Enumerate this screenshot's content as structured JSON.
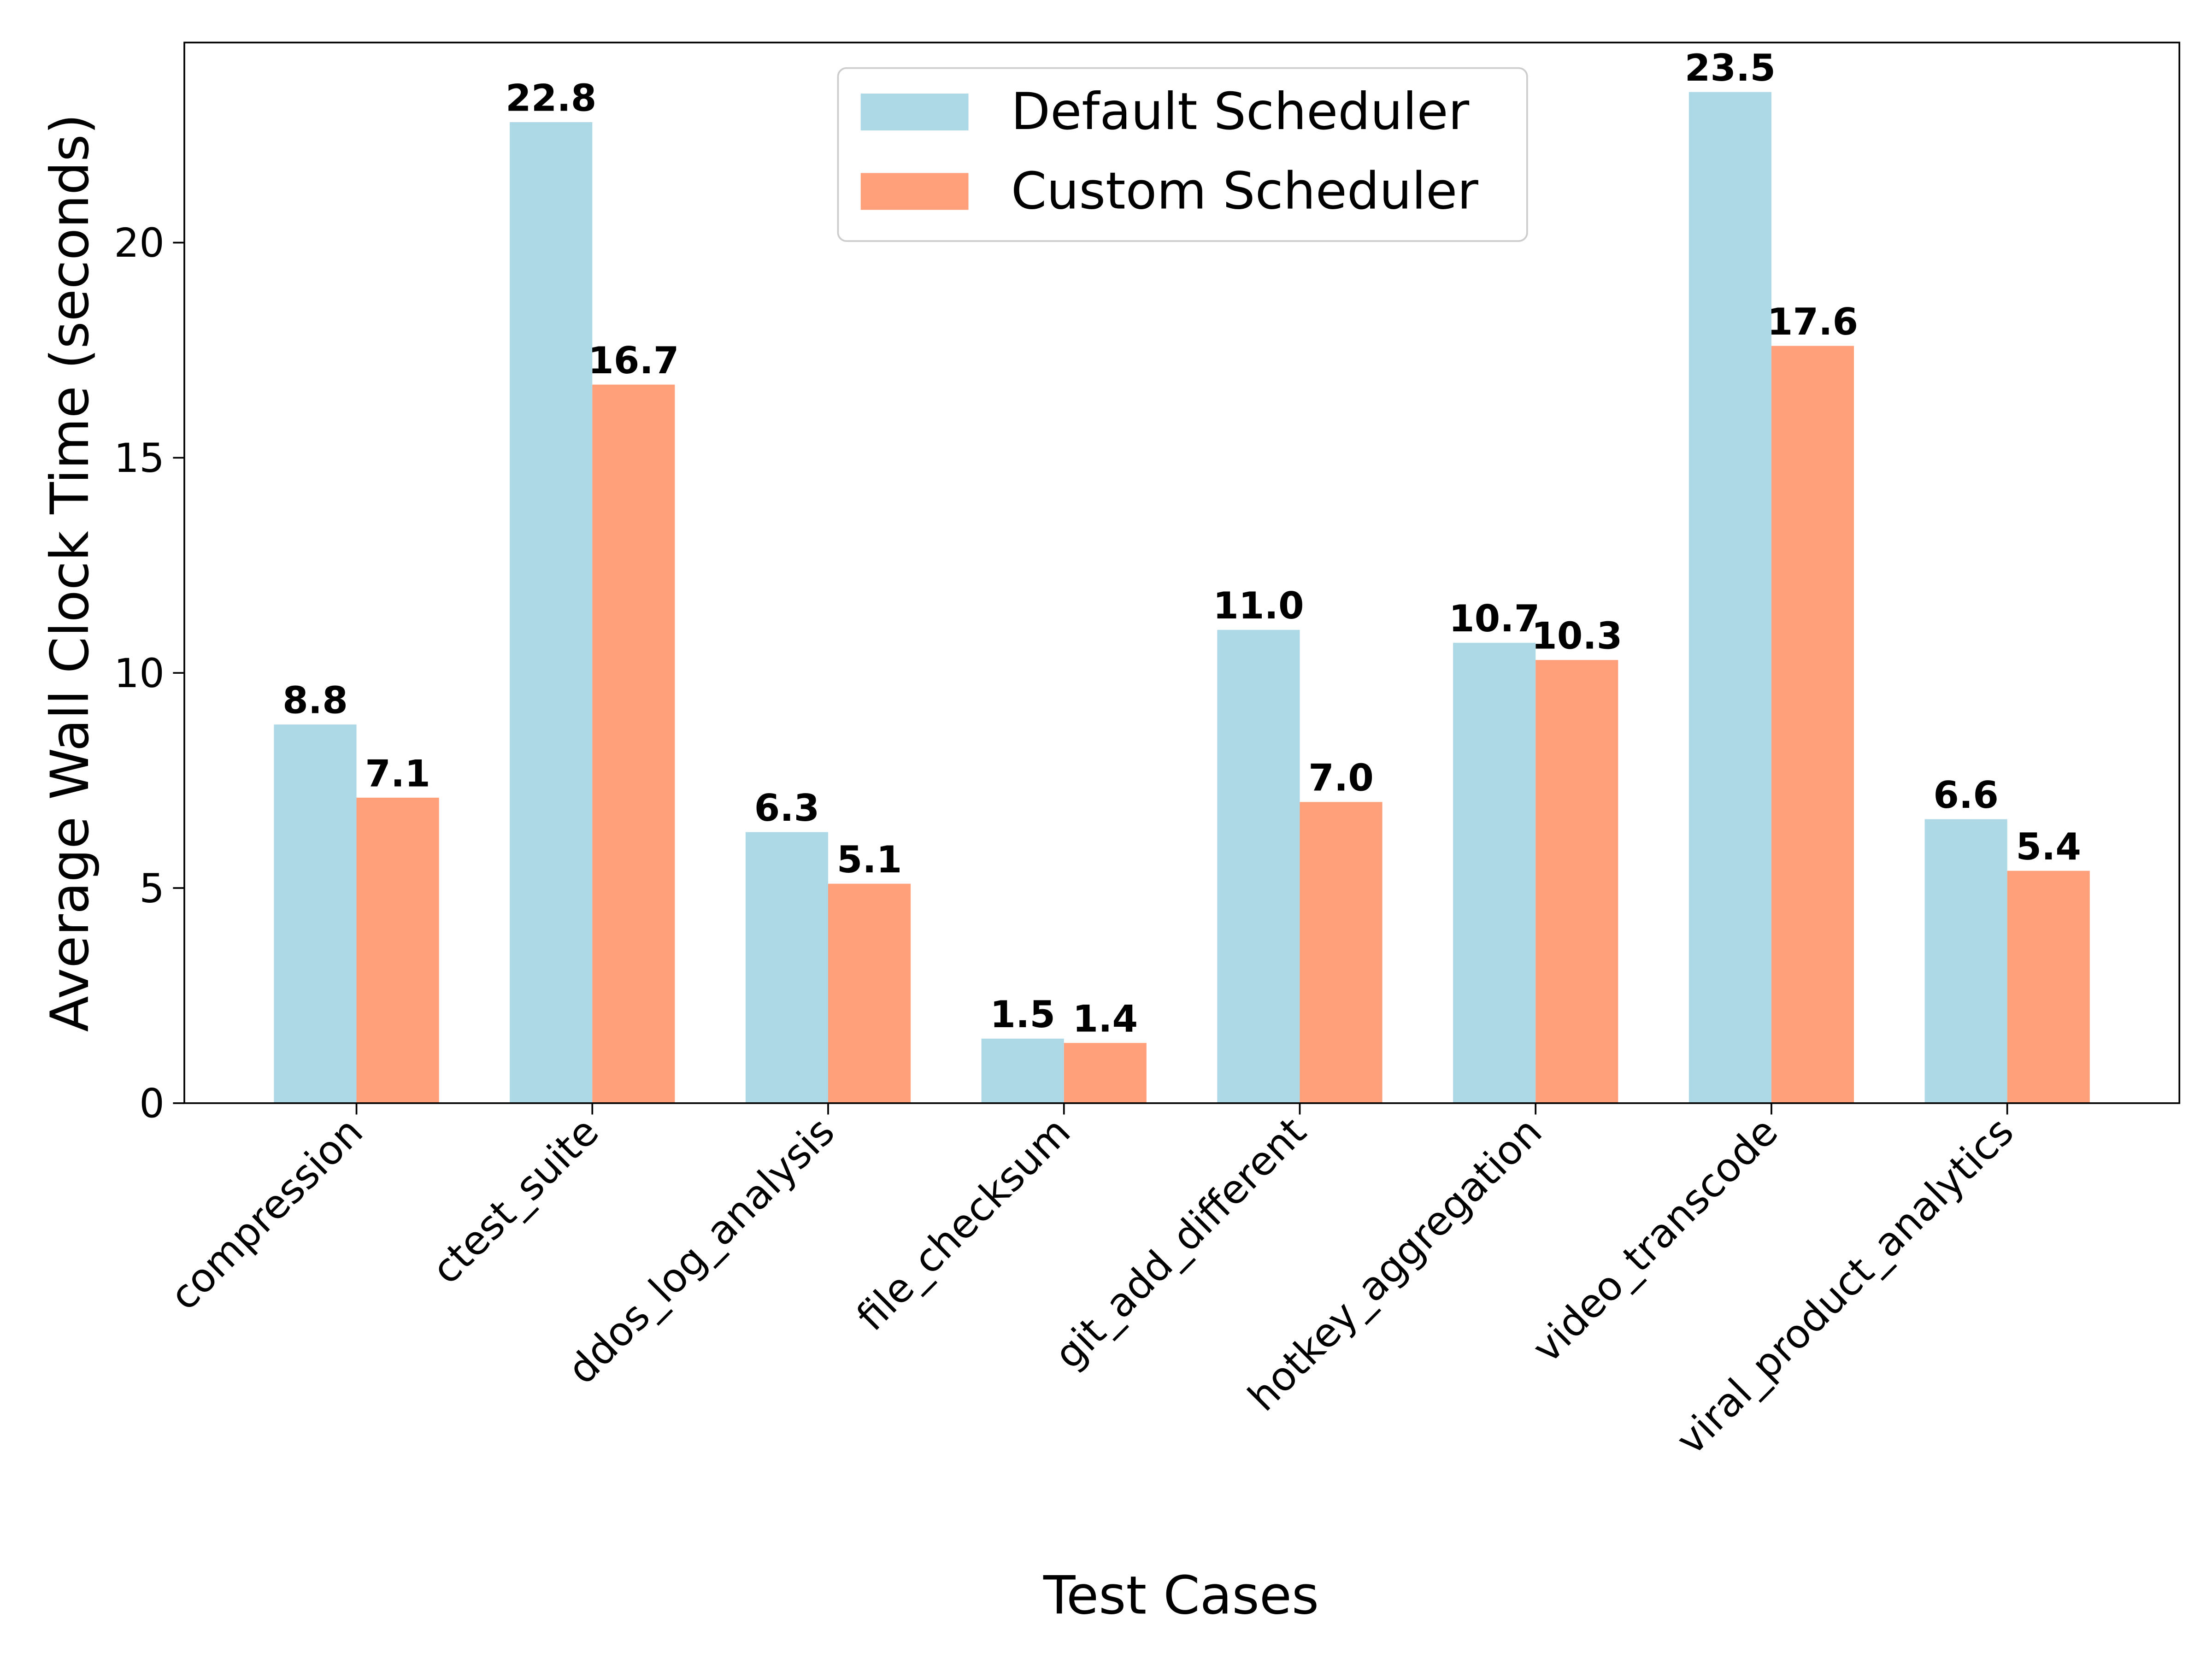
{
  "chart_data": {
    "type": "bar",
    "x_label": "Test Cases",
    "y_label": "Average Wall Clock Time (seconds)",
    "categories": [
      "compression",
      "ctest_suite",
      "ddos_log_analysis",
      "file_checksum",
      "git_add_different",
      "hotkey_aggregation",
      "video_transcode",
      "viral_product_analytics"
    ],
    "series": [
      {
        "name": "Default Scheduler",
        "color": "#add8e6",
        "values": [
          8.8,
          22.8,
          6.3,
          1.5,
          11.0,
          10.7,
          23.5,
          6.6
        ],
        "value_labels": [
          "8.8",
          "22.8",
          "6.3",
          "1.5",
          "11.0",
          "10.7",
          "23.5",
          "6.6"
        ]
      },
      {
        "name": "Custom Scheduler",
        "color": "#ffa07a",
        "values": [
          7.1,
          16.7,
          5.1,
          1.4,
          7.0,
          10.3,
          17.6,
          5.4
        ],
        "value_labels": [
          "7.1",
          "16.7",
          "5.1",
          "1.4",
          "7.0",
          "10.3",
          "17.6",
          "5.4"
        ]
      }
    ],
    "ylim": [
      0,
      24.65
    ],
    "yticks": [
      0,
      5,
      10,
      15,
      20
    ],
    "legend": "upper center"
  }
}
